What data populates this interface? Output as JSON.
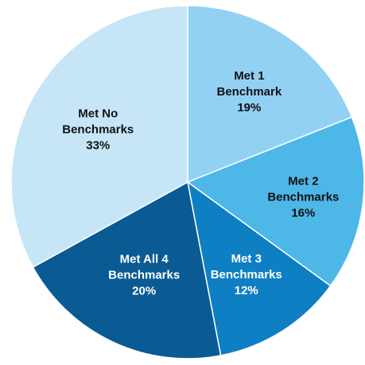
{
  "chart_data": {
    "type": "pie",
    "title": "",
    "slices": [
      {
        "label_lines": [
          "Met 1",
          "Benchmark"
        ],
        "value": 19,
        "value_label": "19%",
        "color": "#92D1F3",
        "text_color": "#111111"
      },
      {
        "label_lines": [
          "Met 2",
          "Benchmarks"
        ],
        "value": 16,
        "value_label": "16%",
        "color": "#4DB7E8",
        "text_color": "#111111"
      },
      {
        "label_lines": [
          "Met 3",
          "Benchmarks"
        ],
        "value": 12,
        "value_label": "12%",
        "color": "#0F7FC3",
        "text_color": "#ffffff"
      },
      {
        "label_lines": [
          "Met All 4",
          "Benchmarks"
        ],
        "value": 20,
        "value_label": "20%",
        "color": "#0A5B94",
        "text_color": "#ffffff"
      },
      {
        "label_lines": [
          "Met No",
          "Benchmarks"
        ],
        "value": 33,
        "value_label": "33%",
        "color": "#C6E6F8",
        "text_color": "#111111"
      }
    ],
    "start_angle_deg": 0,
    "direction": "clockwise",
    "legend": "none"
  }
}
